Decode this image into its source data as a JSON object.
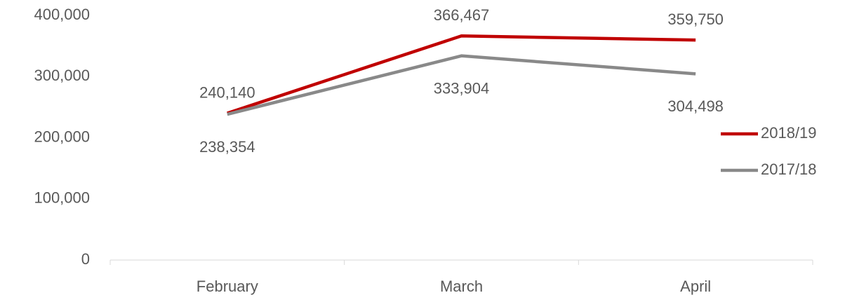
{
  "chart_data": {
    "type": "line",
    "categories": [
      "February",
      "March",
      "April"
    ],
    "series": [
      {
        "name": "2018/19",
        "color": "#c00000",
        "values": [
          240140,
          366467,
          359750
        ],
        "value_labels": [
          "240,140",
          "366,467",
          "359,750"
        ]
      },
      {
        "name": "2017/18",
        "color": "#898989",
        "values": [
          238354,
          333904,
          304498
        ],
        "value_labels": [
          "238,354",
          "333,904",
          "304,498"
        ]
      }
    ],
    "ylim": [
      0,
      400000
    ],
    "yticks": [
      0,
      {
        "value": 100000,
        "label": "100,000"
      },
      {
        "value": 200000,
        "label": "200,000"
      },
      {
        "value": 300000,
        "label": "300,000"
      },
      {
        "value": 400000,
        "label": "400,000"
      }
    ],
    "grid": false,
    "legend": "right"
  }
}
